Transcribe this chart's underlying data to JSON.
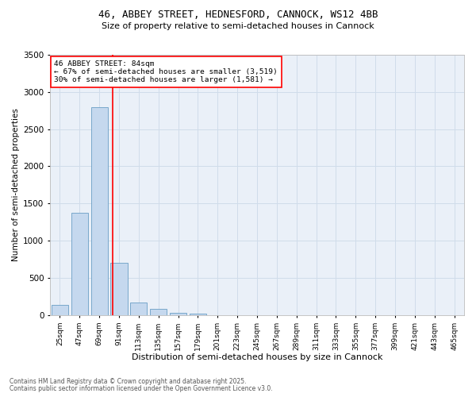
{
  "title_line1": "46, ABBEY STREET, HEDNESFORD, CANNOCK, WS12 4BB",
  "title_line2": "Size of property relative to semi-detached houses in Cannock",
  "xlabel": "Distribution of semi-detached houses by size in Cannock",
  "ylabel": "Number of semi-detached properties",
  "bar_labels": [
    "25sqm",
    "47sqm",
    "69sqm",
    "91sqm",
    "113sqm",
    "135sqm",
    "157sqm",
    "179sqm",
    "201sqm",
    "223sqm",
    "245sqm",
    "267sqm",
    "289sqm",
    "311sqm",
    "333sqm",
    "355sqm",
    "377sqm",
    "399sqm",
    "421sqm",
    "443sqm",
    "465sqm"
  ],
  "bar_values": [
    140,
    1380,
    2800,
    700,
    165,
    85,
    35,
    20,
    0,
    0,
    0,
    0,
    0,
    0,
    0,
    0,
    0,
    0,
    0,
    0,
    0
  ],
  "bar_color": "#c5d8ee",
  "bar_edgecolor": "#6a9ec5",
  "grid_color": "#d0dcea",
  "background_color": "#eaf0f8",
  "annotation_text": "46 ABBEY STREET: 84sqm\n← 67% of semi-detached houses are smaller (3,519)\n30% of semi-detached houses are larger (1,581) →",
  "vline_color": "red",
  "ylim": [
    0,
    3500
  ],
  "yticks": [
    0,
    500,
    1000,
    1500,
    2000,
    2500,
    3000,
    3500
  ],
  "footnote1": "Contains HM Land Registry data © Crown copyright and database right 2025.",
  "footnote2": "Contains public sector information licensed under the Open Government Licence v3.0."
}
